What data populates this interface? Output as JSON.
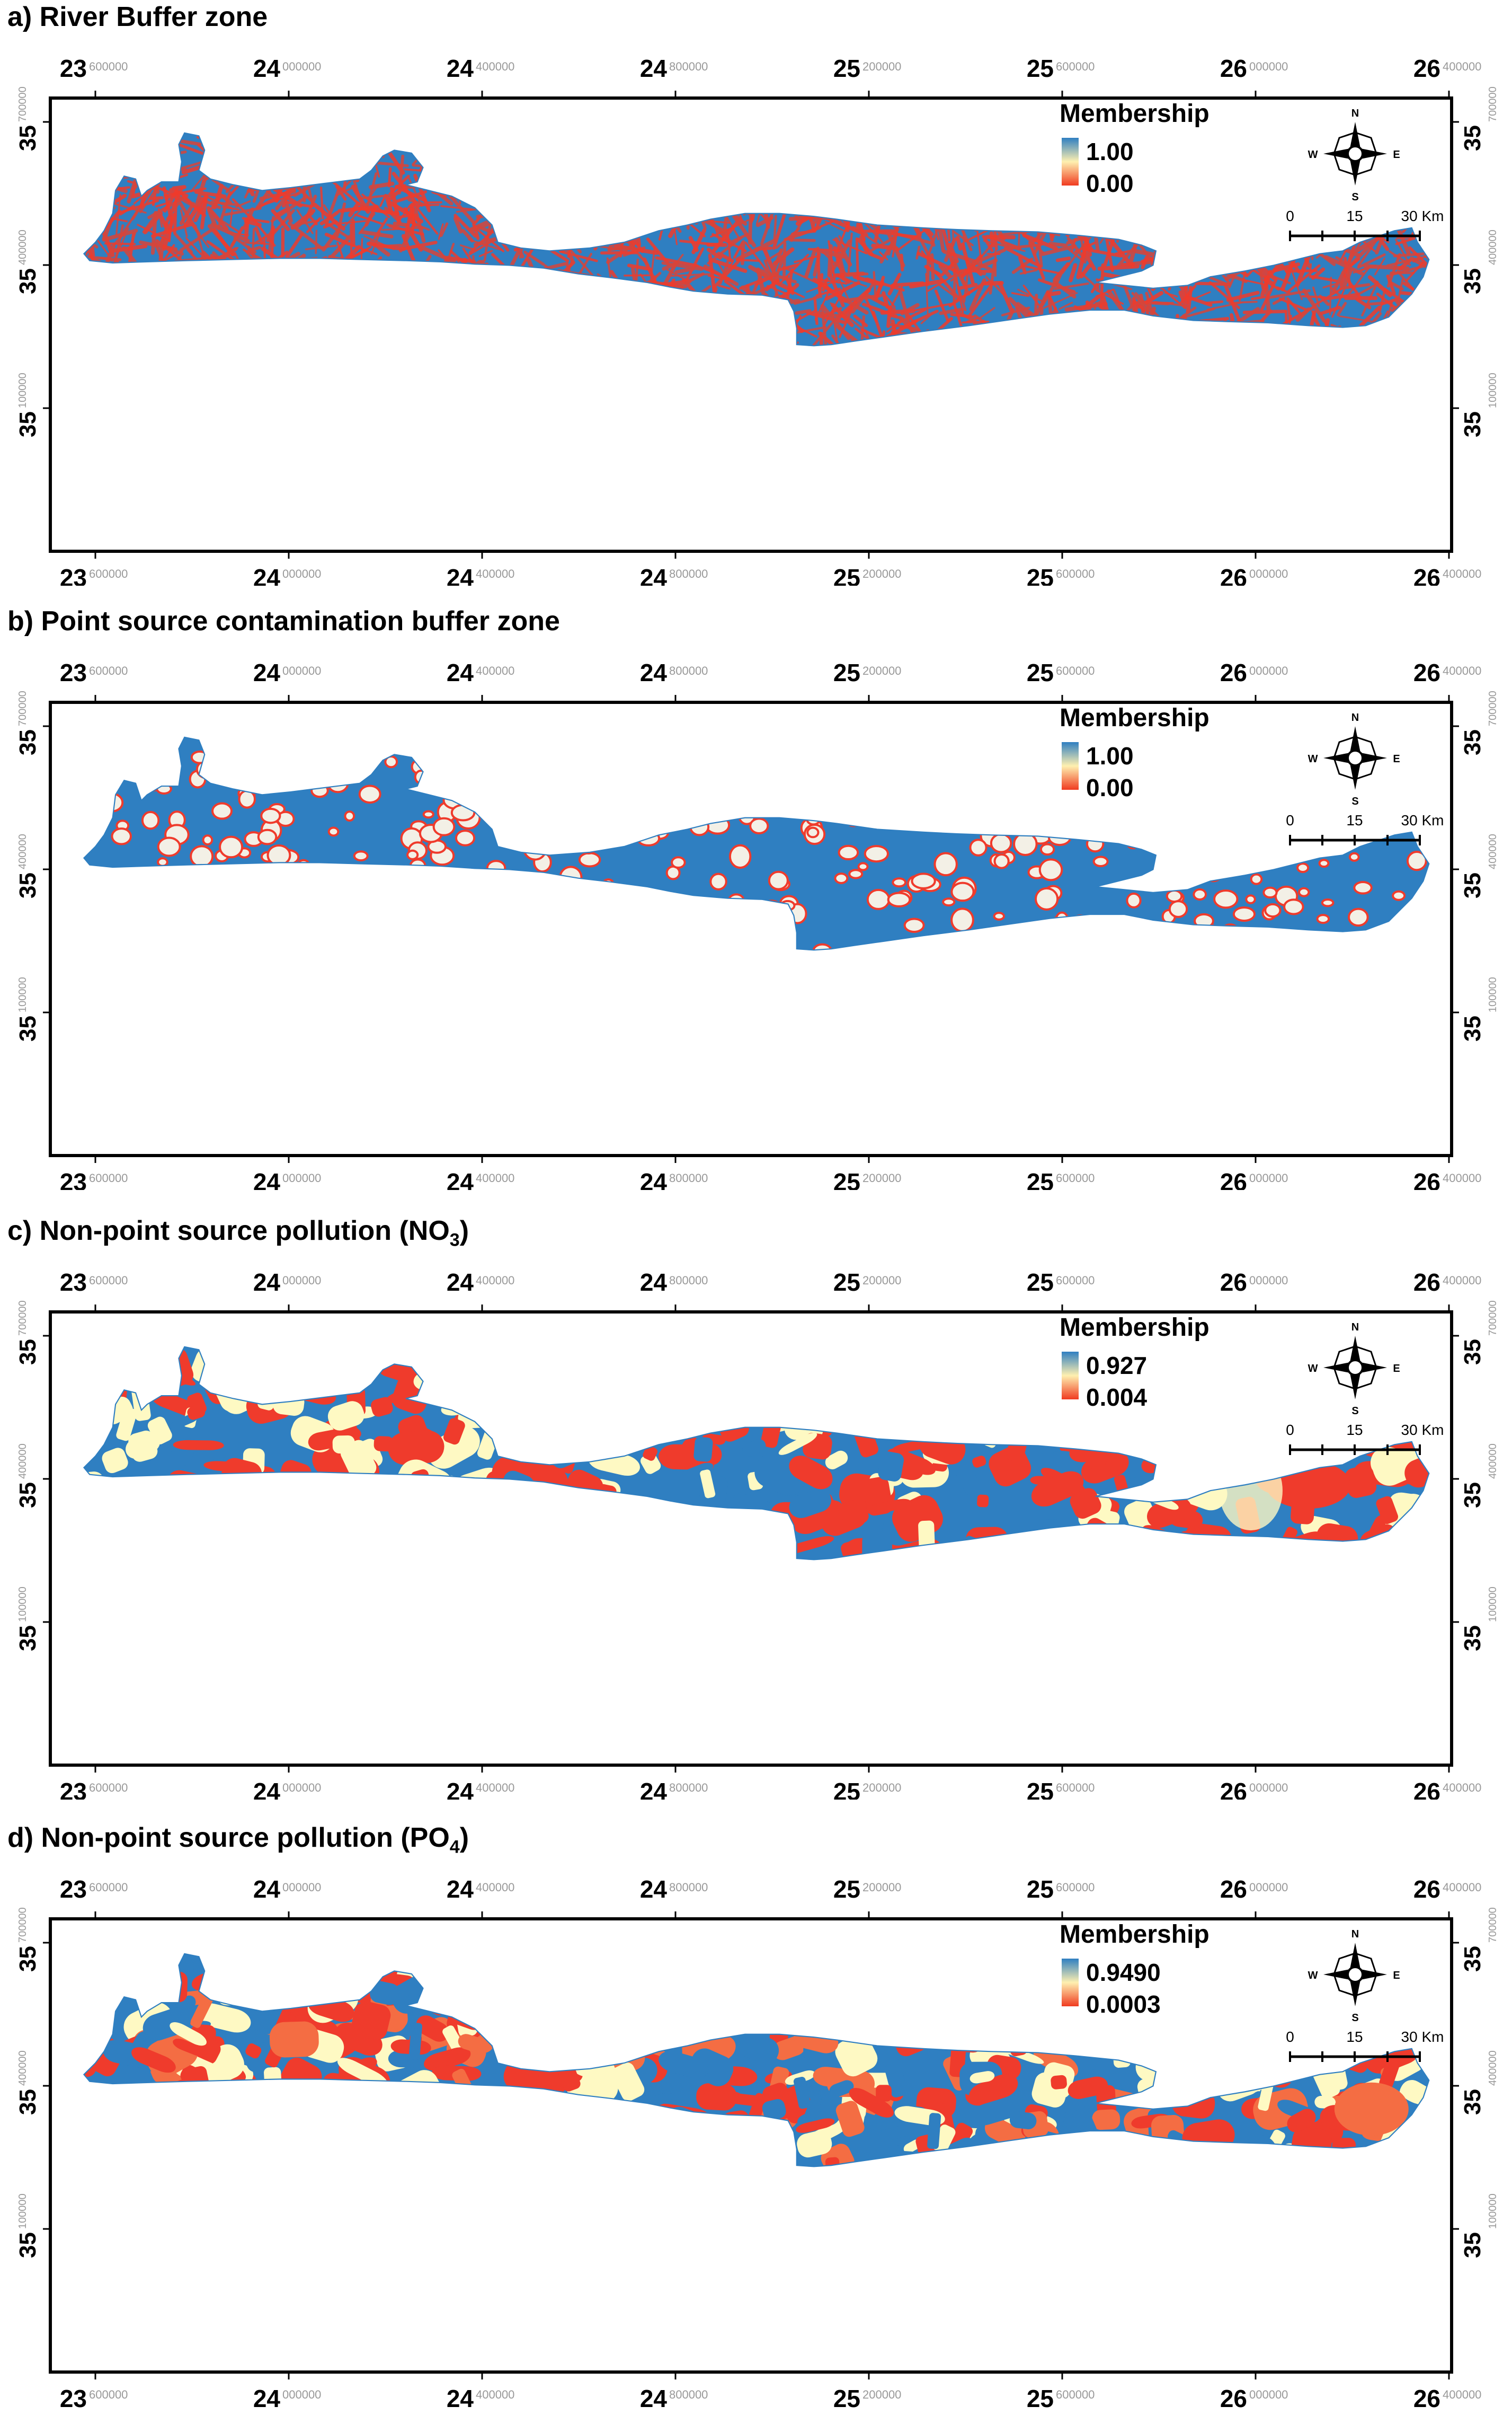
{
  "figure": {
    "panels": [
      {
        "id": "a",
        "title": "a) River Buffer zone",
        "legend": {
          "title": "Membership",
          "high": "1.00",
          "low": "0.00"
        },
        "scheme": "river"
      },
      {
        "id": "b",
        "title": "b) Point source contamination buffer zone",
        "legend": {
          "title": "Membership",
          "high": "1.00",
          "low": "0.00"
        },
        "scheme": "point"
      },
      {
        "id": "c",
        "title_prefix": "c) Non-point source pollution (NO",
        "title_sub": "3",
        "title_suffix": ")",
        "legend": {
          "title": "Membership",
          "high": "0.927",
          "low": "0.004"
        },
        "scheme": "nitrate"
      },
      {
        "id": "d",
        "title_prefix": "d) Non-point source pollution (PO",
        "title_sub": "4",
        "title_suffix": ")",
        "legend": {
          "title": "Membership",
          "high": "0.9490",
          "low": "0.0003"
        },
        "scheme": "phosphate"
      }
    ],
    "x_ticks": [
      {
        "deg": "23",
        "min": "600000"
      },
      {
        "deg": "24",
        "min": "000000"
      },
      {
        "deg": "24",
        "min": "400000"
      },
      {
        "deg": "24",
        "min": "800000"
      },
      {
        "deg": "25",
        "min": "200000"
      },
      {
        "deg": "25",
        "min": "600000"
      },
      {
        "deg": "26",
        "min": "000000"
      },
      {
        "deg": "26",
        "min": "400000"
      }
    ],
    "y_ticks": [
      {
        "deg": "35",
        "min": "700000"
      },
      {
        "deg": "35",
        "min": "400000"
      },
      {
        "deg": "35",
        "min": "100000"
      }
    ],
    "compass": {
      "n": "N",
      "s": "S",
      "e": "E",
      "w": "W"
    },
    "scale_bar": {
      "labels": [
        "0",
        "15",
        "30 Km"
      ]
    },
    "colors": {
      "blue": "#2f7fc1",
      "red": "#ef3b2c",
      "orange": "#f46d43",
      "cream": "#fef9c3",
      "legend_blue": "#2f7fc1",
      "legend_red": "#f03b20"
    }
  }
}
